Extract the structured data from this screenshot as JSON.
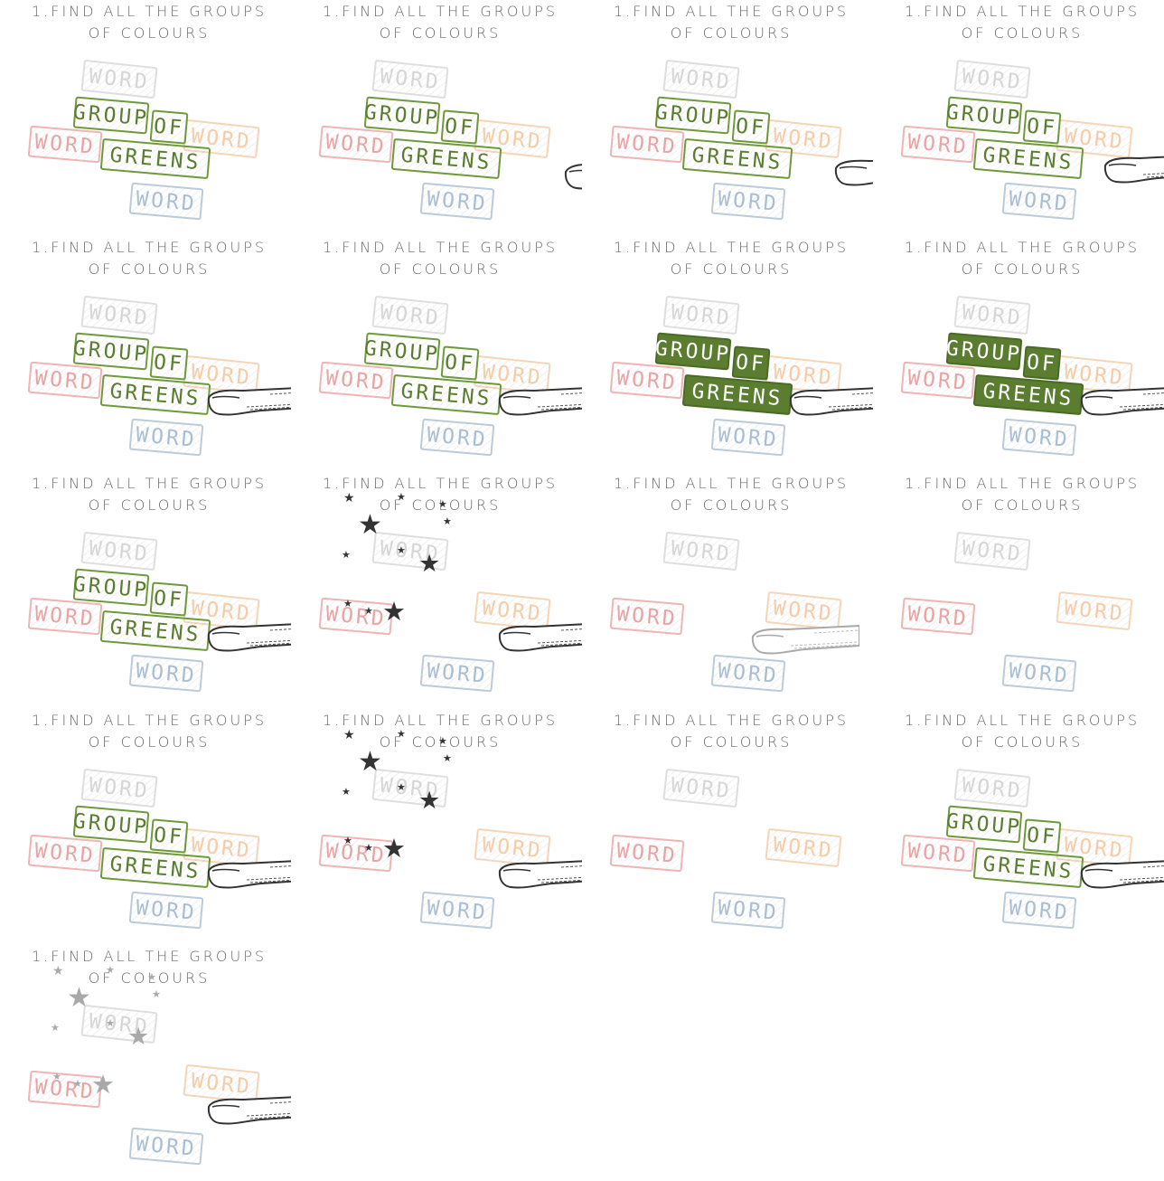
{
  "caption": "1.FIND ALL THE GROUPS\nOF COLOURS",
  "tiles": {
    "word": "WORD",
    "group": "GROUP",
    "of": "OF",
    "greens": "GREENS"
  },
  "colors": {
    "green": "#5a7d2f",
    "green_solid": "#5a7d2f",
    "red": "#e9a3a3",
    "orange": "#f6cca6",
    "blue": "#a9bed3",
    "grey": "#d6d6d6",
    "finger": "#333333",
    "star": "#333333",
    "star_faded": "#a9a9a9"
  },
  "frames": [
    {
      "id": 1,
      "greens_style": "outline",
      "finger": "none",
      "stars": "none"
    },
    {
      "id": 2,
      "greens_style": "outline",
      "finger": "far",
      "stars": "none"
    },
    {
      "id": 3,
      "greens_style": "outline",
      "finger": "mid",
      "stars": "none"
    },
    {
      "id": 4,
      "greens_style": "outline",
      "finger": "near",
      "stars": "none"
    },
    {
      "id": 5,
      "greens_style": "outline",
      "finger": "touch",
      "stars": "none"
    },
    {
      "id": 6,
      "greens_style": "outline",
      "finger": "touch",
      "stars": "none"
    },
    {
      "id": 7,
      "greens_style": "solid",
      "finger": "touch",
      "stars": "none"
    },
    {
      "id": 8,
      "greens_style": "solid",
      "finger": "touch",
      "stars": "none"
    },
    {
      "id": 9,
      "greens_style": "outline",
      "finger": "touch",
      "stars": "none"
    },
    {
      "id": 10,
      "greens_style": "hidden",
      "finger": "touch",
      "stars": "dark"
    },
    {
      "id": 11,
      "greens_style": "hidden",
      "finger": "faded",
      "stars": "none"
    },
    {
      "id": 12,
      "greens_style": "hidden",
      "finger": "none",
      "stars": "none"
    },
    {
      "id": 13,
      "greens_style": "outline",
      "finger": "touch",
      "stars": "none"
    },
    {
      "id": 14,
      "greens_style": "hidden",
      "finger": "touch",
      "stars": "dark"
    },
    {
      "id": 15,
      "greens_style": "hidden",
      "finger": "none",
      "stars": "none"
    },
    {
      "id": 16,
      "greens_style": "outline",
      "finger": "touch",
      "stars": "none"
    },
    {
      "id": 17,
      "greens_style": "hidden",
      "finger": "touch",
      "stars": "faded"
    }
  ]
}
